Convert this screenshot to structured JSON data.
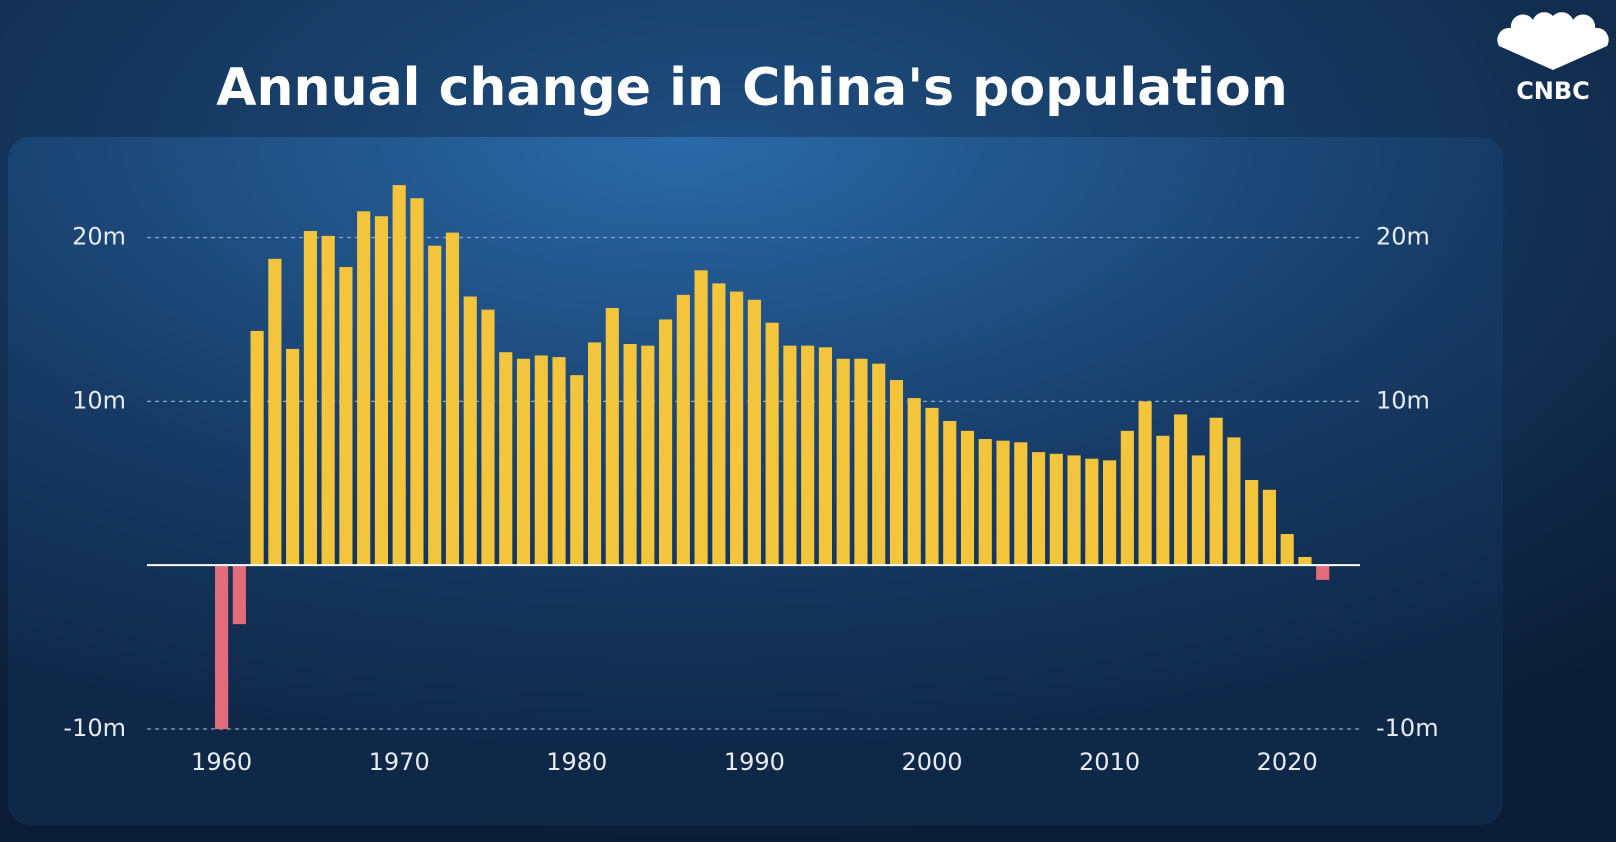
{
  "logo": "CNBC",
  "chart_data": {
    "type": "bar",
    "title": "Annual change in China's population",
    "x": [
      1960,
      1961,
      1962,
      1963,
      1964,
      1965,
      1966,
      1967,
      1968,
      1969,
      1970,
      1971,
      1972,
      1973,
      1974,
      1975,
      1976,
      1977,
      1978,
      1979,
      1980,
      1981,
      1982,
      1983,
      1984,
      1985,
      1986,
      1987,
      1988,
      1989,
      1990,
      1991,
      1992,
      1993,
      1994,
      1995,
      1996,
      1997,
      1998,
      1999,
      2000,
      2001,
      2002,
      2003,
      2004,
      2005,
      2006,
      2007,
      2008,
      2009,
      2010,
      2011,
      2012,
      2013,
      2014,
      2015,
      2016,
      2017,
      2018,
      2019,
      2020,
      2021,
      2022
    ],
    "values": [
      -10.0,
      -3.6,
      14.3,
      18.7,
      13.2,
      20.4,
      20.1,
      18.2,
      21.6,
      21.3,
      23.2,
      22.4,
      19.5,
      20.3,
      16.4,
      15.6,
      13.0,
      12.6,
      12.8,
      12.7,
      11.6,
      13.6,
      15.7,
      13.5,
      13.4,
      15.0,
      16.5,
      18.0,
      17.2,
      16.7,
      16.2,
      14.8,
      13.4,
      13.4,
      13.3,
      12.6,
      12.6,
      12.3,
      11.3,
      10.2,
      9.6,
      8.8,
      8.2,
      7.7,
      7.6,
      7.5,
      6.9,
      6.8,
      6.7,
      6.5,
      6.4,
      8.2,
      10.0,
      7.9,
      9.2,
      6.7,
      9.0,
      7.8,
      5.2,
      4.6,
      1.9,
      0.5,
      -0.9
    ],
    "color": "#f2c53d",
    "negative_color": "#e26c7b",
    "xlim": [
      1955.8,
      2024.1
    ],
    "xticks": [
      1960,
      1970,
      1980,
      1990,
      2000,
      2010,
      2020
    ],
    "ylim": [
      -10,
      24
    ],
    "yticks": [
      {
        "value": -10,
        "label": "-10m"
      },
      {
        "value": 10,
        "label": "10m"
      },
      {
        "value": 20,
        "label": "20m"
      }
    ],
    "grid": true
  }
}
